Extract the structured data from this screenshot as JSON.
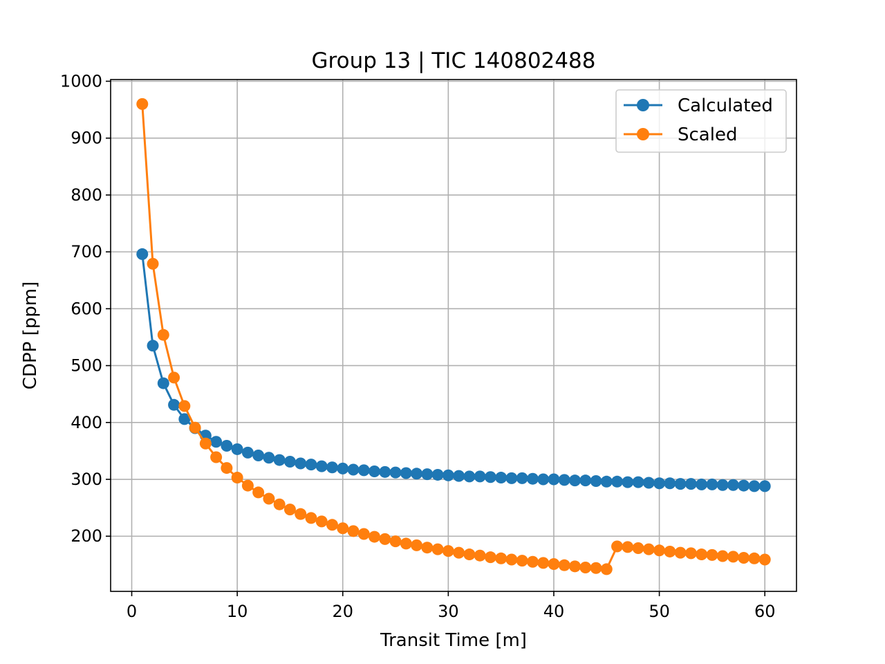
{
  "chart_data": {
    "type": "line",
    "title": "Group 13 | TIC 140802488",
    "xlabel": "Transit Time [m]",
    "ylabel": "CDPP [ppm]",
    "xlim": [
      -2,
      63
    ],
    "ylim": [
      103,
      1003
    ],
    "xticks": [
      0,
      10,
      20,
      30,
      40,
      50,
      60
    ],
    "yticks": [
      200,
      300,
      400,
      500,
      600,
      700,
      800,
      900,
      1000
    ],
    "grid": true,
    "legend_position": "top-right",
    "x": [
      1,
      2,
      3,
      4,
      5,
      6,
      7,
      8,
      9,
      10,
      11,
      12,
      13,
      14,
      15,
      16,
      17,
      18,
      19,
      20,
      21,
      22,
      23,
      24,
      25,
      26,
      27,
      28,
      29,
      30,
      31,
      32,
      33,
      34,
      35,
      36,
      37,
      38,
      39,
      40,
      41,
      42,
      43,
      44,
      45,
      46,
      47,
      48,
      49,
      50,
      51,
      52,
      53,
      54,
      55,
      56,
      57,
      58,
      59,
      60
    ],
    "series": [
      {
        "name": "Calculated",
        "color": "#1f77b4",
        "values": [
          696,
          535,
          469,
          431,
          406,
          390,
          377,
          366,
          359,
          353,
          347,
          342,
          338,
          334,
          331,
          328,
          326,
          323,
          321,
          319,
          317,
          316,
          314,
          313,
          312,
          311,
          310,
          309,
          308,
          307,
          306,
          305,
          305,
          304,
          303,
          302,
          302,
          301,
          300,
          300,
          299,
          298,
          298,
          297,
          296,
          296,
          295,
          295,
          294,
          293,
          293,
          292,
          292,
          291,
          291,
          290,
          290,
          289,
          288,
          288
        ]
      },
      {
        "name": "Scaled",
        "color": "#ff7f0e",
        "values": [
          960,
          679,
          554,
          479,
          429,
          391,
          363,
          339,
          320,
          303,
          289,
          277,
          266,
          256,
          247,
          239,
          232,
          226,
          220,
          214,
          209,
          204,
          199,
          195,
          191,
          187,
          184,
          180,
          177,
          174,
          171,
          168,
          166,
          163,
          161,
          159,
          157,
          155,
          153,
          151,
          149,
          147,
          145,
          144,
          142,
          182,
          181,
          179,
          177,
          175,
          173,
          171,
          170,
          168,
          167,
          165,
          164,
          162,
          161,
          159
        ]
      }
    ]
  }
}
